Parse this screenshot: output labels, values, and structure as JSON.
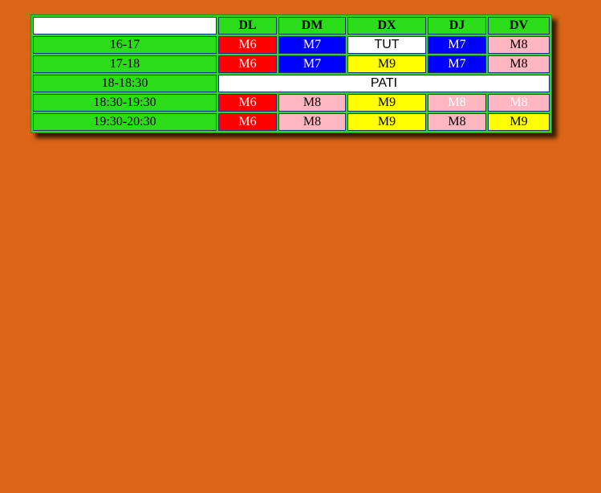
{
  "colors": {
    "page_background": "#dc6517",
    "green": "#2bdd18",
    "red": "#ff0000",
    "blue": "#0000ff",
    "yellow": "#ffff00",
    "pink": "#ffb6c1",
    "white": "#ffffff"
  },
  "header": {
    "corner": "",
    "days": [
      "DL",
      "DM",
      "DX",
      "DJ",
      "DV"
    ]
  },
  "rows": [
    {
      "time": "16-17",
      "cells": [
        {
          "text": "M6",
          "bg": "#ff0000",
          "fg": "#ffffff",
          "font": "serif"
        },
        {
          "text": "M7",
          "bg": "#0000ff",
          "fg": "#ffffff",
          "font": "serif"
        },
        {
          "text": "TUT",
          "bg": "#ffffff",
          "fg": "#000000",
          "font": "sans"
        },
        {
          "text": "M7",
          "bg": "#0000ff",
          "fg": "#ffffff",
          "font": "serif"
        },
        {
          "text": "M8",
          "bg": "#ffb6c1",
          "fg": "#000000",
          "font": "serif"
        }
      ]
    },
    {
      "time": "17-18",
      "cells": [
        {
          "text": "M6",
          "bg": "#ff0000",
          "fg": "#ffffff",
          "font": "serif"
        },
        {
          "text": "M7",
          "bg": "#0000ff",
          "fg": "#ffffff",
          "font": "serif"
        },
        {
          "text": "M9",
          "bg": "#ffff00",
          "fg": "#000000",
          "font": "serif"
        },
        {
          "text": "M7",
          "bg": "#0000ff",
          "fg": "#ffffff",
          "font": "serif"
        },
        {
          "text": "M8",
          "bg": "#ffb6c1",
          "fg": "#000000",
          "font": "serif"
        }
      ]
    },
    {
      "time": "18-18:30",
      "span_text": "PATI"
    },
    {
      "time": "18:30-19:30",
      "cells": [
        {
          "text": "M6",
          "bg": "#ff0000",
          "fg": "#ffffff",
          "font": "serif"
        },
        {
          "text": "M8",
          "bg": "#ffb6c1",
          "fg": "#000000",
          "font": "serif"
        },
        {
          "text": "M9",
          "bg": "#ffff00",
          "fg": "#000000",
          "font": "serif"
        },
        {
          "text": "M8",
          "bg": "#ffb6c1",
          "fg": "#ffffff",
          "font": "serif"
        },
        {
          "text": "M8",
          "bg": "#ffb6c1",
          "fg": "#ffffff",
          "font": "serif"
        }
      ]
    },
    {
      "time": "19:30-20:30",
      "cells": [
        {
          "text": "M6",
          "bg": "#ff0000",
          "fg": "#ffffff",
          "font": "serif"
        },
        {
          "text": "M8",
          "bg": "#ffb6c1",
          "fg": "#000000",
          "font": "serif"
        },
        {
          "text": "M9",
          "bg": "#ffff00",
          "fg": "#000000",
          "font": "serif"
        },
        {
          "text": "M8",
          "bg": "#ffb6c1",
          "fg": "#000000",
          "font": "serif"
        },
        {
          "text": "M9",
          "bg": "#ffff00",
          "fg": "#000000",
          "font": "serif"
        }
      ]
    }
  ]
}
